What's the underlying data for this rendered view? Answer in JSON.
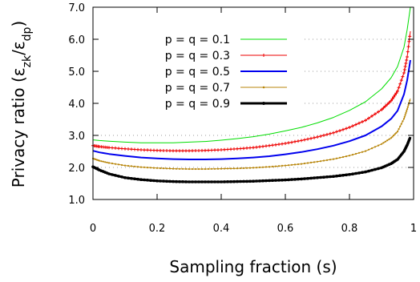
{
  "chart_data": {
    "type": "line",
    "xlabel": "Sampling fraction (s)",
    "ylabel_main": "Privacy ratio (ε",
    "ylabel_sub1": "zk",
    "ylabel_mid": "/ε",
    "ylabel_sub2": "dp",
    "ylabel_end": ")",
    "xlim": [
      0,
      1
    ],
    "ylim": [
      1.0,
      7.0
    ],
    "x_ticks": [
      0,
      0.2,
      0.4,
      0.6,
      0.8,
      1
    ],
    "x_tick_labels": [
      "0",
      "0.2",
      "0.4",
      "0.6",
      "0.8",
      "1"
    ],
    "y_ticks": [
      1,
      2,
      3,
      4,
      5,
      6,
      7
    ],
    "y_tick_labels": [
      "1.0",
      "2.0",
      "3.0",
      "4.0",
      "5.0",
      "6.0",
      "7.0"
    ],
    "grid": "dotted horizontal",
    "legend_position": "top-left",
    "x": [
      0.0,
      0.02,
      0.05,
      0.1,
      0.15,
      0.2,
      0.25,
      0.3,
      0.35,
      0.4,
      0.45,
      0.5,
      0.55,
      0.6,
      0.65,
      0.7,
      0.75,
      0.8,
      0.85,
      0.9,
      0.93,
      0.95,
      0.97,
      0.98,
      0.99
    ],
    "series": [
      {
        "name": "p = q = 0.1",
        "color": "#00dd00",
        "marker": "none",
        "width": 1,
        "values": [
          2.86,
          2.84,
          2.82,
          2.79,
          2.77,
          2.77,
          2.77,
          2.79,
          2.81,
          2.85,
          2.9,
          2.96,
          3.04,
          3.14,
          3.25,
          3.39,
          3.56,
          3.78,
          4.05,
          4.45,
          4.8,
          5.15,
          5.75,
          6.3,
          7.0
        ]
      },
      {
        "name": "p = q = 0.3",
        "color": "#ee0000",
        "marker": "plus",
        "width": 1,
        "values": [
          2.68,
          2.65,
          2.62,
          2.58,
          2.55,
          2.53,
          2.52,
          2.52,
          2.53,
          2.55,
          2.58,
          2.62,
          2.68,
          2.75,
          2.84,
          2.95,
          3.08,
          3.25,
          3.47,
          3.8,
          4.08,
          4.38,
          4.95,
          5.45,
          6.25
        ]
      },
      {
        "name": "p = q = 0.5",
        "color": "#0000ee",
        "marker": "none",
        "width": 2,
        "values": [
          2.52,
          2.47,
          2.42,
          2.36,
          2.31,
          2.28,
          2.26,
          2.25,
          2.25,
          2.26,
          2.28,
          2.31,
          2.35,
          2.41,
          2.48,
          2.57,
          2.68,
          2.82,
          3.0,
          3.28,
          3.52,
          3.77,
          4.28,
          4.72,
          5.35
        ]
      },
      {
        "name": "p = q = 0.7",
        "color": "#b8860b",
        "marker": "dot",
        "width": 1,
        "values": [
          2.28,
          2.21,
          2.14,
          2.06,
          2.01,
          1.98,
          1.96,
          1.95,
          1.95,
          1.96,
          1.97,
          1.99,
          2.02,
          2.06,
          2.11,
          2.18,
          2.26,
          2.37,
          2.51,
          2.73,
          2.92,
          3.12,
          3.52,
          3.82,
          4.15
        ]
      },
      {
        "name": "p = q = 0.9",
        "color": "#000000",
        "marker": "dot",
        "width": 3,
        "values": [
          2.02,
          1.92,
          1.8,
          1.68,
          1.62,
          1.58,
          1.56,
          1.55,
          1.55,
          1.55,
          1.56,
          1.57,
          1.59,
          1.61,
          1.64,
          1.68,
          1.72,
          1.78,
          1.86,
          1.99,
          2.12,
          2.25,
          2.5,
          2.7,
          2.95
        ]
      }
    ]
  }
}
